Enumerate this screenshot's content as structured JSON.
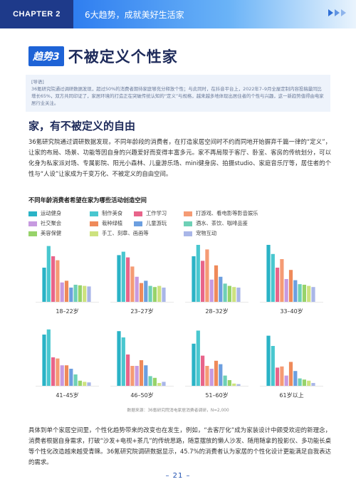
{
  "header": {
    "chapter": "CHAPTER 2",
    "title": "6大趋势，成就美好生活家"
  },
  "trend": {
    "badge": "趋势3",
    "title": "不被定义个性家"
  },
  "guide": {
    "label": "[导语]",
    "text": "36氪研究院通过调研数据发现，超过50%的消费者期待家庭够充分释放个性；与此同时，在抖音平台上，2022年7–9月全屋定制内容投稿量同比增长65%，双方共同印证了，家居环境的打造正在突破传统认知的“定义”与规格，越来越多地体现出居住者的个性与兴趣，这一新趋势值得由电家居行业关注。"
  },
  "section": {
    "heading": "家，有不被定义的自由",
    "para1": "36氪研究院通过调研数据发现，不同年龄段的消费者，在打造家居空间时不约而同地开始摒弃千篇一律的“定义”，让家的布局、场景、功能等因自身的兴趣爱好而变得丰富多元。家不再局限于客厅、卧室、客房的传统划分，可以化身为私家派对场、专属影院、阳光小森林、儿童游乐场、mini健身房、拍摄studio、家庭音乐厅等，居住者的个性与“人设”让家成为千变万化、不被定义的自由空间。",
    "para2": "具体到单个家居空间里，个性化趋势带来的改变也在发生，例如，“去客厅化”成为家装设计中颇受欢迎的新理念，消费者根据自身需求，打破“沙发+电视+茶几”的传统思路，随意摆放的懒人沙发、随用随拿的投影仪、多功能长桌等个性化改造越来越受青睐。36氪研究院调研数据显示，45.7%的消费者认为家居的个性化设计更能满足自我表达的需求。"
  },
  "chart_data": {
    "type": "bar",
    "title": "不同年龄消费者希望在家为哪些活动创造空间",
    "series": [
      {
        "name": "运动健身",
        "color": "#2ab3c6"
      },
      {
        "name": "制作美食",
        "color": "#49c7cf"
      },
      {
        "name": "工作学习",
        "color": "#e8648a"
      },
      {
        "name": "打游戏、看电影等影音娱乐",
        "color": "#f59b74"
      },
      {
        "name": "社交聚会",
        "color": "#c79ae0"
      },
      {
        "name": "栽种绿植",
        "color": "#ef8a5a"
      },
      {
        "name": "儿童游玩",
        "color": "#6c9fe0"
      },
      {
        "name": "酒水、茶饮、咖啡品鉴",
        "color": "#6ed0b6"
      },
      {
        "name": "美容保健",
        "color": "#97d36a"
      },
      {
        "name": "手工、刻章、画画等",
        "color": "#cde27f"
      },
      {
        "name": "宠物互动",
        "color": "#a9b6e8"
      }
    ],
    "categories": [
      "18–22岁",
      "23–27岁",
      "28–32岁",
      "33–40岁",
      "41–45岁",
      "46–50岁",
      "51–60岁",
      "61岁以上"
    ],
    "values": [
      [
        60,
        98,
        80,
        73,
        34,
        37,
        25,
        30,
        29,
        28,
        27
      ],
      [
        82,
        88,
        78,
        62,
        44,
        33,
        37,
        28,
        26,
        28,
        25
      ],
      [
        80,
        100,
        72,
        92,
        39,
        64,
        44,
        32,
        28,
        26,
        25
      ],
      [
        100,
        84,
        60,
        75,
        40,
        56,
        38,
        31,
        30,
        28,
        26
      ],
      [
        90,
        99,
        50,
        48,
        36,
        36,
        30,
        20,
        9,
        7,
        6
      ],
      [
        96,
        85,
        55,
        35,
        35,
        45,
        36,
        17,
        14,
        5,
        7
      ],
      [
        74,
        97,
        53,
        35,
        30,
        44,
        38,
        18,
        10,
        4,
        3
      ],
      [
        88,
        70,
        32,
        34,
        18,
        42,
        26,
        13,
        11,
        9,
        5
      ]
    ],
    "source": "数据来源：36氪研究院消电家居消费者调研，N=2,000"
  },
  "page_number": "– 21 –"
}
